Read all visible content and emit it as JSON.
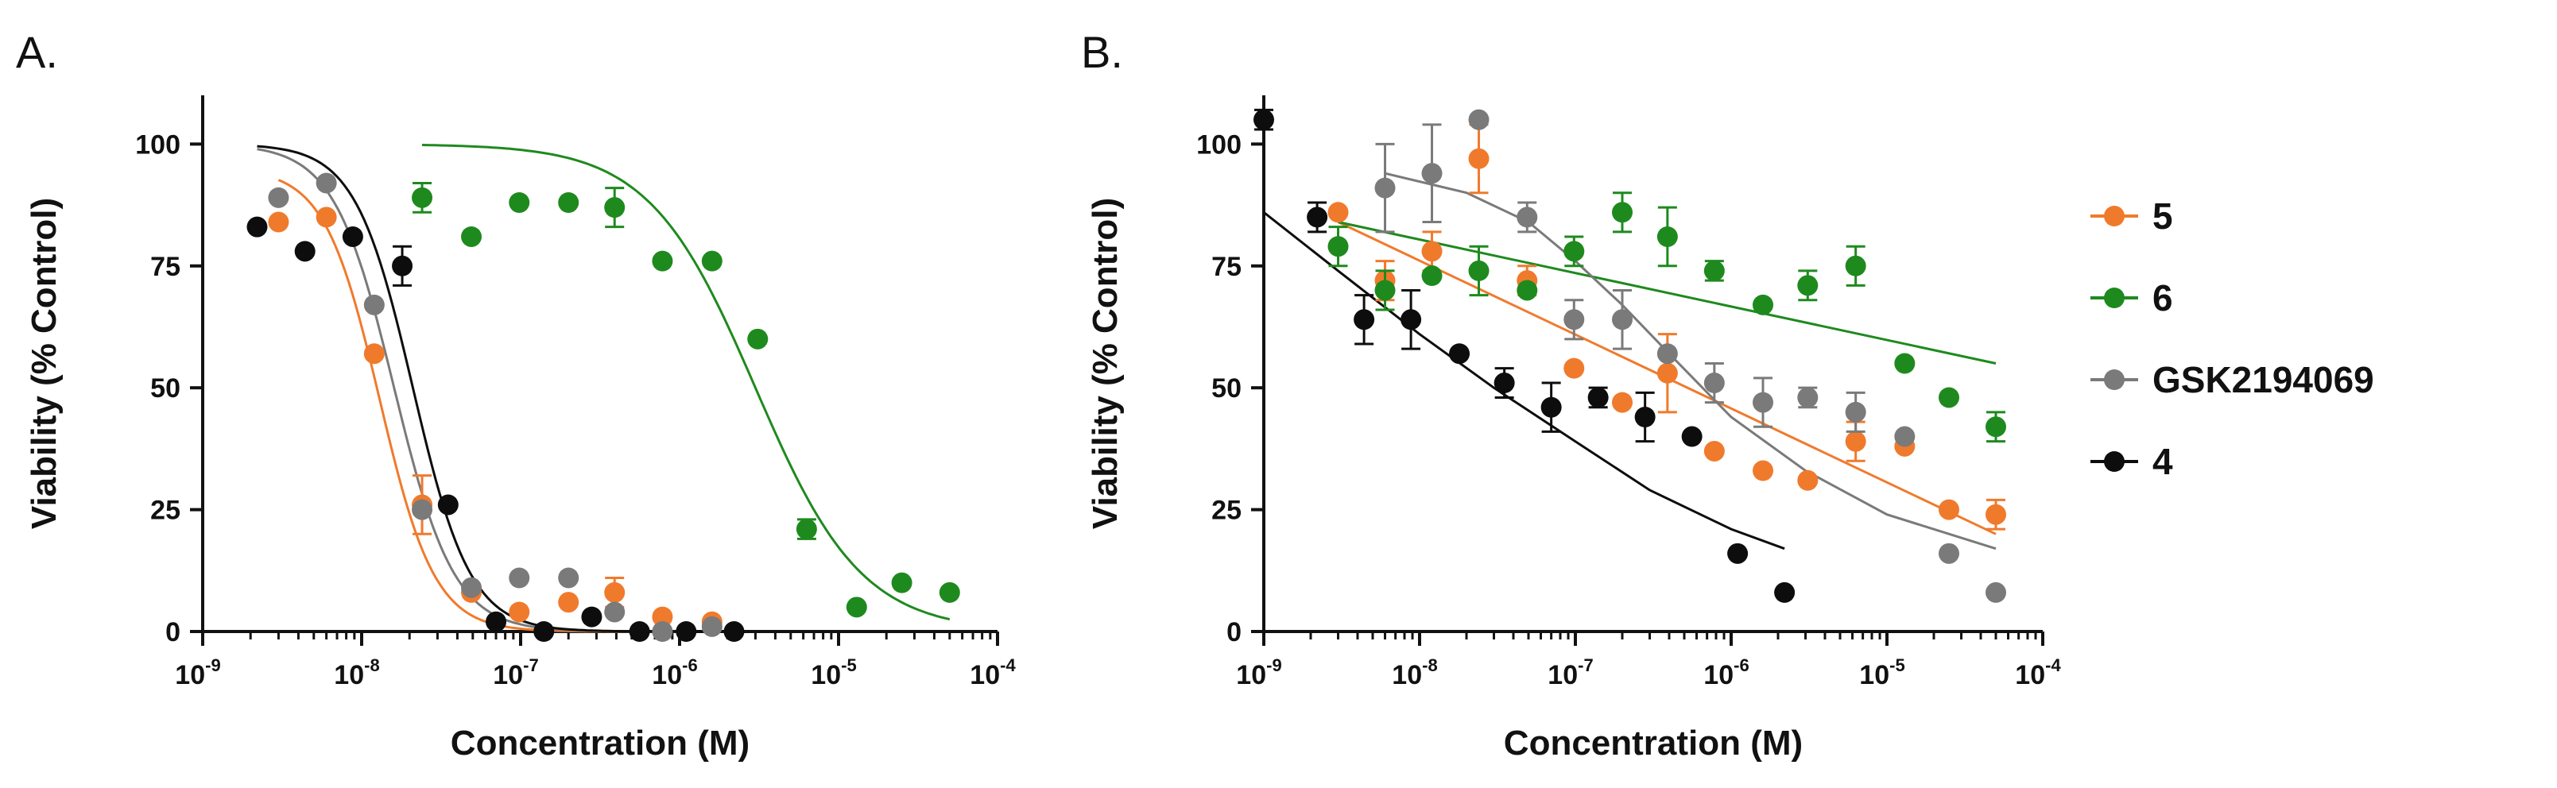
{
  "colors": {
    "5": "#f07a2c",
    "6": "#1e8a1e",
    "GSK2194069": "#7a7a7a",
    "4": "#0d0d0d"
  },
  "legend": [
    {
      "id": "5",
      "label": "5"
    },
    {
      "id": "6",
      "label": "6"
    },
    {
      "id": "GSK2194069",
      "label": "GSK2194069"
    },
    {
      "id": "4",
      "label": "4"
    }
  ],
  "chart_data": [
    {
      "panel": "A.",
      "type": "scatter",
      "xlabel": "Concentration (M)",
      "ylabel": "Viability (% Control)",
      "xscale": "log",
      "xlim": [
        1e-09,
        0.0001
      ],
      "ylim": [
        0,
        110
      ],
      "xticks": [
        {
          "base": "10",
          "exp": "-9"
        },
        {
          "base": "10",
          "exp": "-8"
        },
        {
          "base": "10",
          "exp": "-7"
        },
        {
          "base": "10",
          "exp": "-6"
        },
        {
          "base": "10",
          "exp": "-5"
        },
        {
          "base": "10",
          "exp": "-4"
        }
      ],
      "yticks": [
        0,
        25,
        50,
        75,
        100
      ],
      "series": [
        {
          "name": "5",
          "points": [
            [
              3e-09,
              84,
              0
            ],
            [
              6e-09,
              85,
              0
            ],
            [
              1.2e-08,
              57,
              0
            ],
            [
              2.4e-08,
              26,
              6
            ],
            [
              4.9e-08,
              8,
              0
            ],
            [
              9.8e-08,
              4,
              0
            ],
            [
              2e-07,
              6,
              0
            ],
            [
              3.9e-07,
              8,
              3
            ],
            [
              7.8e-07,
              3,
              0
            ],
            [
              1.6e-06,
              2,
              0
            ]
          ],
          "fit": {
            "top": 95,
            "bottom": 0,
            "ic50": 1.3e-08,
            "hill": 2.5,
            "xrange": [
              3e-09,
              1e-06
            ]
          }
        },
        {
          "name": "6",
          "points": [
            [
              2.4e-08,
              89,
              3
            ],
            [
              4.9e-08,
              81,
              0
            ],
            [
              9.8e-08,
              88,
              0
            ],
            [
              2e-07,
              88,
              0
            ],
            [
              3.9e-07,
              87,
              4
            ],
            [
              7.8e-07,
              76,
              0
            ],
            [
              1.6e-06,
              76,
              0
            ],
            [
              3.1e-06,
              60,
              0
            ],
            [
              6.3e-06,
              21,
              2
            ],
            [
              1.3e-05,
              5,
              0
            ],
            [
              2.5e-05,
              10,
              0
            ],
            [
              5e-05,
              8,
              0
            ]
          ],
          "fit": {
            "top": 100,
            "bottom": 0,
            "ic50": 3e-06,
            "hill": 1.3,
            "xrange": [
              2.4e-08,
              5e-05
            ]
          }
        },
        {
          "name": "GSK2194069",
          "points": [
            [
              3e-09,
              89,
              0
            ],
            [
              6e-09,
              92,
              0
            ],
            [
              1.2e-08,
              67,
              0
            ],
            [
              2.4e-08,
              25,
              0
            ],
            [
              4.9e-08,
              9,
              0
            ],
            [
              9.8e-08,
              11,
              0
            ],
            [
              2e-07,
              11,
              0
            ],
            [
              3.9e-07,
              4,
              0
            ],
            [
              7.8e-07,
              0,
              0
            ],
            [
              1.6e-06,
              1,
              0
            ]
          ],
          "fit": {
            "top": 100,
            "bottom": 0,
            "ic50": 1.6e-08,
            "hill": 2.3,
            "xrange": [
              2.2e-09,
              1e-06
            ]
          }
        },
        {
          "name": "4",
          "points": [
            [
              2.2e-09,
              83,
              0
            ],
            [
              4.4e-09,
              78,
              0
            ],
            [
              8.8e-09,
              81,
              0
            ],
            [
              1.8e-08,
              75,
              4
            ],
            [
              3.5e-08,
              26,
              0
            ],
            [
              7e-08,
              2,
              0
            ],
            [
              1.4e-07,
              0,
              0
            ],
            [
              2.8e-07,
              3,
              0
            ],
            [
              5.6e-07,
              0,
              0
            ],
            [
              1.1e-06,
              0,
              0
            ],
            [
              2.2e-06,
              0,
              0
            ]
          ],
          "fit": {
            "top": 100,
            "bottom": 0,
            "ic50": 2.1e-08,
            "hill": 2.4,
            "xrange": [
              2.2e-09,
              2.2e-06
            ]
          }
        }
      ]
    },
    {
      "panel": "B.",
      "type": "scatter",
      "xlabel": "Concentration (M)",
      "ylabel": "Viability (% Control)",
      "xscale": "log",
      "xlim": [
        1e-09,
        0.0001
      ],
      "ylim": [
        0,
        110
      ],
      "xticks": [
        {
          "base": "10",
          "exp": "-9"
        },
        {
          "base": "10",
          "exp": "-8"
        },
        {
          "base": "10",
          "exp": "-7"
        },
        {
          "base": "10",
          "exp": "-6"
        },
        {
          "base": "10",
          "exp": "-5"
        },
        {
          "base": "10",
          "exp": "-4"
        }
      ],
      "yticks": [
        0,
        25,
        50,
        75,
        100
      ],
      "series": [
        {
          "name": "5",
          "points": [
            [
              3e-09,
              86,
              0
            ],
            [
              6e-09,
              72,
              4
            ],
            [
              1.2e-08,
              78,
              4
            ],
            [
              2.4e-08,
              97,
              7
            ],
            [
              4.9e-08,
              72,
              3
            ],
            [
              9.8e-08,
              54,
              0
            ],
            [
              2e-07,
              47,
              0
            ],
            [
              3.9e-07,
              53,
              8
            ],
            [
              7.8e-07,
              37,
              0
            ],
            [
              1.6e-06,
              33,
              0
            ],
            [
              3.1e-06,
              31,
              0
            ],
            [
              6.3e-06,
              39,
              4
            ],
            [
              1.3e-05,
              38,
              0
            ],
            [
              2.5e-05,
              25,
              0
            ],
            [
              5e-05,
              24,
              3
            ]
          ],
          "line": [
            [
              3e-09,
              84
            ],
            [
              5e-05,
              20
            ]
          ]
        },
        {
          "name": "6",
          "points": [
            [
              3e-09,
              79,
              4
            ],
            [
              6e-09,
              70,
              4
            ],
            [
              1.2e-08,
              73,
              0
            ],
            [
              2.4e-08,
              74,
              5
            ],
            [
              4.9e-08,
              70,
              0
            ],
            [
              9.8e-08,
              78,
              3
            ],
            [
              2e-07,
              86,
              4
            ],
            [
              3.9e-07,
              81,
              6
            ],
            [
              7.8e-07,
              74,
              2
            ],
            [
              1.6e-06,
              67,
              0
            ],
            [
              3.1e-06,
              71,
              3
            ],
            [
              6.3e-06,
              75,
              4
            ],
            [
              1.3e-05,
              55,
              0
            ],
            [
              2.5e-05,
              48,
              0
            ],
            [
              5e-05,
              42,
              3
            ]
          ],
          "line": [
            [
              3e-09,
              84
            ],
            [
              5e-05,
              55
            ]
          ]
        },
        {
          "name": "GSK2194069",
          "points": [
            [
              2.4e-08,
              105,
              0
            ],
            [
              6e-09,
              91,
              9
            ],
            [
              1.2e-08,
              94,
              10
            ],
            [
              4.9e-08,
              85,
              3
            ],
            [
              9.8e-08,
              64,
              4
            ],
            [
              2e-07,
              64,
              6
            ],
            [
              3.9e-07,
              57,
              0
            ],
            [
              7.8e-07,
              51,
              4
            ],
            [
              1.6e-06,
              47,
              5
            ],
            [
              3.1e-06,
              48,
              2
            ],
            [
              6.3e-06,
              45,
              4
            ],
            [
              1.3e-05,
              40,
              0
            ],
            [
              2.5e-05,
              16,
              0
            ],
            [
              5e-05,
              8,
              0
            ]
          ],
          "line": "curve",
          "curve": [
            [
              6e-09,
              94
            ],
            [
              2e-08,
              90
            ],
            [
              5e-08,
              84
            ],
            [
              1e-07,
              76
            ],
            [
              2e-07,
              67
            ],
            [
              4e-07,
              57
            ],
            [
              1e-06,
              44
            ],
            [
              3e-06,
              33
            ],
            [
              1e-05,
              24
            ],
            [
              5e-05,
              17
            ]
          ]
        },
        {
          "name": "4",
          "points": [
            [
              1e-09,
              105,
              2
            ],
            [
              2.2e-09,
              85,
              3
            ],
            [
              4.4e-09,
              64,
              5
            ],
            [
              8.8e-09,
              64,
              6
            ],
            [
              1.8e-08,
              57,
              0
            ],
            [
              3.5e-08,
              51,
              3
            ],
            [
              7e-08,
              46,
              5
            ],
            [
              1.4e-07,
              48,
              2
            ],
            [
              2.8e-07,
              44,
              5
            ],
            [
              5.6e-07,
              40,
              0
            ],
            [
              1.1e-06,
              16,
              0
            ],
            [
              2.2e-06,
              8,
              0
            ]
          ],
          "line": "curve",
          "curve": [
            [
              1e-09,
              86
            ],
            [
              3e-09,
              74
            ],
            [
              1e-08,
              61
            ],
            [
              3e-08,
              50
            ],
            [
              1e-07,
              39
            ],
            [
              3e-07,
              29
            ],
            [
              1e-06,
              21
            ],
            [
              2.2e-06,
              17
            ]
          ]
        }
      ]
    }
  ]
}
